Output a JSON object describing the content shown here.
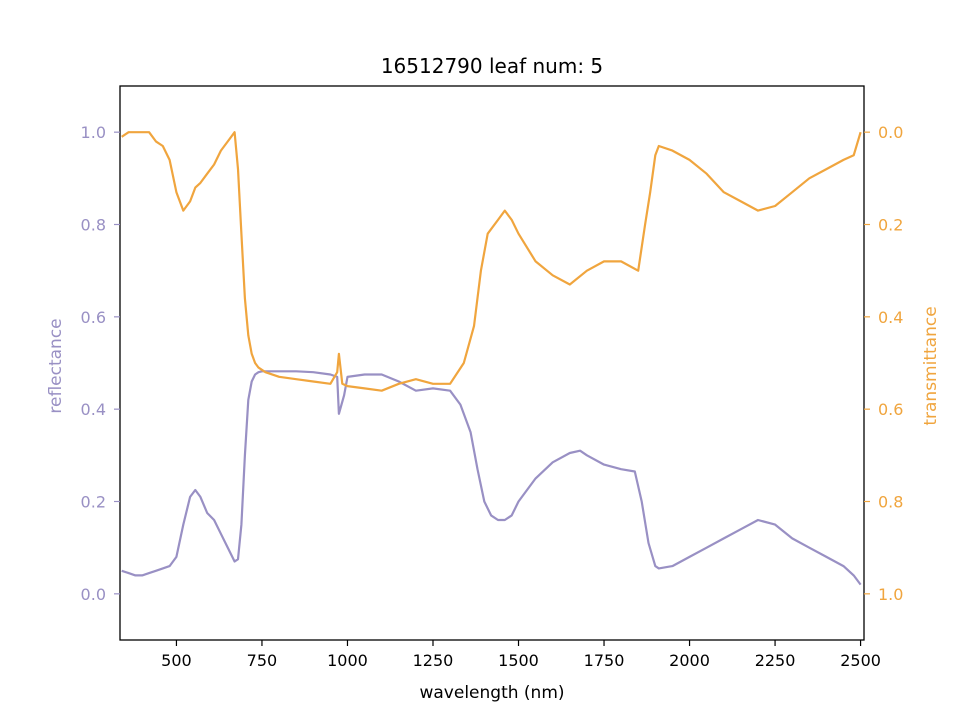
{
  "chart_data": {
    "type": "line",
    "title": "16512790 leaf num: 5",
    "xlabel": "wavelength (nm)",
    "ylabel_left": "reflectance",
    "ylabel_right": "transmittance",
    "xlim": [
      335,
      2510
    ],
    "ylim_left": [
      -0.1,
      1.1
    ],
    "ylim_right_inverted": [
      1.1,
      -0.1
    ],
    "x_ticks": [
      500,
      750,
      1000,
      1250,
      1500,
      1750,
      2000,
      2250,
      2500
    ],
    "y_ticks_left": [
      "0.0",
      "0.2",
      "0.4",
      "0.6",
      "0.8",
      "1.0"
    ],
    "y_ticks_right": [
      "0.0",
      "0.2",
      "0.4",
      "0.6",
      "0.8",
      "1.0"
    ],
    "grid": false,
    "colors": {
      "reflectance": "#9990c4",
      "transmittance": "#f0a53e",
      "axes": "#000000"
    },
    "series": [
      {
        "name": "reflectance",
        "axis": "left",
        "x": [
          340,
          360,
          380,
          400,
          420,
          440,
          460,
          480,
          500,
          520,
          540,
          555,
          570,
          590,
          610,
          630,
          650,
          670,
          680,
          690,
          700,
          710,
          720,
          730,
          740,
          750,
          760,
          800,
          850,
          900,
          950,
          970,
          975,
          990,
          1000,
          1050,
          1100,
          1150,
          1200,
          1250,
          1300,
          1330,
          1360,
          1380,
          1400,
          1420,
          1440,
          1460,
          1480,
          1500,
          1550,
          1600,
          1650,
          1680,
          1700,
          1750,
          1800,
          1840,
          1860,
          1880,
          1900,
          1910,
          1950,
          2000,
          2050,
          2100,
          2150,
          2200,
          2250,
          2300,
          2350,
          2400,
          2450,
          2480,
          2500
        ],
        "y": [
          0.05,
          0.045,
          0.04,
          0.04,
          0.045,
          0.05,
          0.055,
          0.06,
          0.08,
          0.15,
          0.21,
          0.225,
          0.21,
          0.175,
          0.16,
          0.13,
          0.1,
          0.07,
          0.075,
          0.15,
          0.3,
          0.42,
          0.46,
          0.475,
          0.48,
          0.482,
          0.482,
          0.482,
          0.482,
          0.48,
          0.475,
          0.47,
          0.39,
          0.43,
          0.47,
          0.475,
          0.475,
          0.46,
          0.44,
          0.445,
          0.44,
          0.41,
          0.35,
          0.27,
          0.2,
          0.17,
          0.16,
          0.16,
          0.17,
          0.2,
          0.25,
          0.285,
          0.305,
          0.31,
          0.3,
          0.28,
          0.27,
          0.265,
          0.2,
          0.11,
          0.06,
          0.055,
          0.06,
          0.08,
          0.1,
          0.12,
          0.14,
          0.16,
          0.15,
          0.12,
          0.1,
          0.08,
          0.06,
          0.04,
          0.02
        ]
      },
      {
        "name": "transmittance",
        "axis": "right",
        "x": [
          340,
          360,
          380,
          400,
          420,
          440,
          460,
          480,
          500,
          520,
          540,
          555,
          570,
          590,
          610,
          630,
          650,
          670,
          680,
          690,
          700,
          710,
          720,
          730,
          740,
          760,
          800,
          850,
          900,
          950,
          970,
          975,
          985,
          1000,
          1050,
          1100,
          1150,
          1200,
          1250,
          1300,
          1340,
          1370,
          1390,
          1410,
          1440,
          1460,
          1480,
          1500,
          1550,
          1600,
          1650,
          1700,
          1750,
          1800,
          1850,
          1870,
          1885,
          1900,
          1910,
          1950,
          2000,
          2050,
          2100,
          2150,
          2200,
          2250,
          2300,
          2350,
          2400,
          2450,
          2480,
          2500
        ],
        "y": [
          0.01,
          0.0,
          0.0,
          0.0,
          0.0,
          0.02,
          0.03,
          0.06,
          0.13,
          0.17,
          0.15,
          0.12,
          0.11,
          0.09,
          0.07,
          0.04,
          0.02,
          0.0,
          0.08,
          0.22,
          0.36,
          0.44,
          0.48,
          0.5,
          0.51,
          0.52,
          0.53,
          0.535,
          0.54,
          0.545,
          0.52,
          0.48,
          0.545,
          0.55,
          0.555,
          0.56,
          0.545,
          0.535,
          0.545,
          0.545,
          0.5,
          0.42,
          0.3,
          0.22,
          0.19,
          0.17,
          0.19,
          0.22,
          0.28,
          0.31,
          0.33,
          0.3,
          0.28,
          0.28,
          0.3,
          0.2,
          0.13,
          0.05,
          0.03,
          0.04,
          0.06,
          0.09,
          0.13,
          0.15,
          0.17,
          0.16,
          0.13,
          0.1,
          0.08,
          0.06,
          0.05,
          0.0
        ]
      }
    ]
  }
}
